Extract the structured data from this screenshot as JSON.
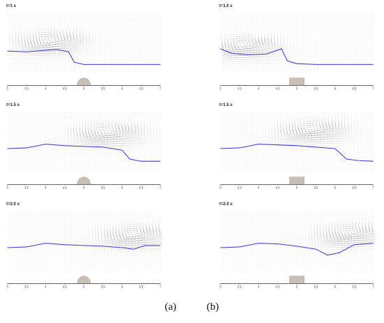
{
  "panels": [
    {
      "id": "a1",
      "title": "t=1 s",
      "obstacle": "semicircle",
      "surface": [
        [
          3,
          2.3
        ],
        [
          3.5,
          2.25
        ],
        [
          4,
          2.35
        ],
        [
          4.3,
          2.4
        ],
        [
          4.6,
          2.25
        ],
        [
          4.75,
          1.55
        ],
        [
          5,
          1.4
        ],
        [
          5.5,
          1.4
        ],
        [
          6,
          1.4
        ],
        [
          6.5,
          1.4
        ],
        [
          7,
          1.4
        ]
      ],
      "vortex": [
        4.1,
        2.9
      ]
    },
    {
      "id": "b1",
      "title": "t=1.0 s",
      "obstacle": "rectangle",
      "surface": [
        [
          3,
          2.45
        ],
        [
          3.3,
          2.15
        ],
        [
          3.7,
          2.05
        ],
        [
          4.2,
          2.1
        ],
        [
          4.6,
          2.45
        ],
        [
          4.75,
          1.65
        ],
        [
          5,
          1.45
        ],
        [
          5.5,
          1.4
        ],
        [
          6,
          1.4
        ],
        [
          6.5,
          1.4
        ],
        [
          7,
          1.4
        ]
      ],
      "vortex": [
        3.6,
        2.6
      ]
    },
    {
      "id": "a2",
      "title": "t=1.5 s",
      "obstacle": "semicircle",
      "surface": [
        [
          3,
          2.4
        ],
        [
          3.5,
          2.45
        ],
        [
          4,
          2.7
        ],
        [
          4.5,
          2.6
        ],
        [
          5,
          2.55
        ],
        [
          5.5,
          2.5
        ],
        [
          6,
          2.3
        ],
        [
          6.2,
          1.7
        ],
        [
          6.5,
          1.55
        ],
        [
          7,
          1.55
        ]
      ],
      "vortex": [
        5.6,
        3.4
      ]
    },
    {
      "id": "b2",
      "title": "t=1.5 s",
      "obstacle": "rectangle",
      "surface": [
        [
          3,
          2.4
        ],
        [
          3.5,
          2.45
        ],
        [
          4,
          2.7
        ],
        [
          4.5,
          2.65
        ],
        [
          5,
          2.6
        ],
        [
          5.5,
          2.5
        ],
        [
          6,
          2.4
        ],
        [
          6.3,
          1.7
        ],
        [
          6.6,
          1.6
        ],
        [
          7,
          1.55
        ]
      ],
      "vortex": [
        5.4,
        3.6
      ]
    },
    {
      "id": "a3",
      "title": "t=2.0 s",
      "obstacle": "semicircle",
      "surface": [
        [
          3,
          2.4
        ],
        [
          3.5,
          2.45
        ],
        [
          4,
          2.7
        ],
        [
          4.5,
          2.6
        ],
        [
          5,
          2.55
        ],
        [
          5.5,
          2.5
        ],
        [
          6,
          2.4
        ],
        [
          6.3,
          2.3
        ],
        [
          6.6,
          2.55
        ],
        [
          7,
          2.55
        ]
      ],
      "vortex": [
        6.3,
        3.2
      ]
    },
    {
      "id": "b3",
      "title": "t=2.0 s",
      "obstacle": "rectangle",
      "surface": [
        [
          3,
          2.4
        ],
        [
          3.5,
          2.45
        ],
        [
          4,
          2.7
        ],
        [
          4.5,
          2.65
        ],
        [
          5,
          2.5
        ],
        [
          5.5,
          2.3
        ],
        [
          5.8,
          1.9
        ],
        [
          6.1,
          2.05
        ],
        [
          6.5,
          2.6
        ],
        [
          7,
          2.7
        ]
      ],
      "vortex": [
        6.4,
        3.3
      ]
    }
  ],
  "xaxis": {
    "min": 3,
    "max": 7,
    "ticks": [
      "3",
      "3.5",
      "4",
      "4.5",
      "5",
      "5.5",
      "6",
      "6.5",
      "7"
    ]
  },
  "captions": {
    "left": "(a)",
    "right": "(b)"
  },
  "colors": {
    "surface": "#3a3ae0",
    "obstacle": "#c8bfb6",
    "vector": "#333333",
    "axis": "#222222"
  }
}
